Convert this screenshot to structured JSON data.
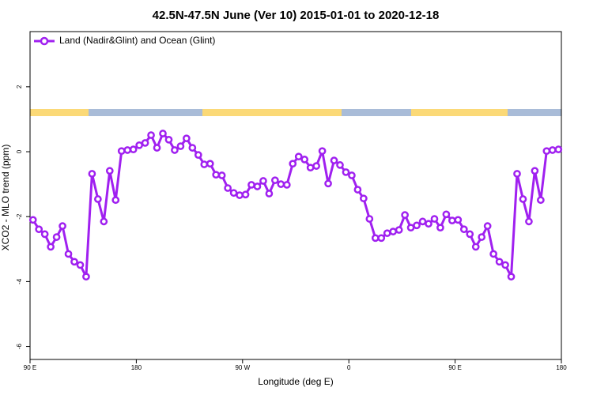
{
  "chart_data": {
    "type": "line",
    "title": "42.5N-47.5N June (Ver 10)   2015-01-01 to 2020-12-18",
    "x_label": "Longitude (deg E)",
    "y_label": "XCO2 - MLO trend (ppm)",
    "legend": "top-left",
    "x": [
      92.5,
      97.5,
      102.5,
      107.5,
      112.5,
      117.5,
      122.5,
      127.5,
      132.5,
      137.5,
      142.5,
      147.5,
      152.5,
      157.5,
      162.5,
      167.5,
      172.5,
      177.5,
      182.5,
      187.5,
      192.5,
      197.5,
      202.5,
      207.5,
      212.5,
      217.5,
      222.5,
      227.5,
      232.5,
      237.5,
      242.5,
      247.5,
      252.5,
      257.5,
      262.5,
      267.5,
      272.5,
      277.5,
      282.5,
      287.5,
      292.5,
      297.5,
      302.5,
      307.5,
      312.5,
      317.5,
      322.5,
      327.5,
      332.5,
      337.5,
      342.5,
      347.5,
      352.5,
      357.5,
      362.5,
      367.5,
      372.5,
      377.5,
      382.5,
      387.5,
      392.5,
      397.5,
      402.5,
      407.5,
      412.5,
      417.5,
      422.5,
      427.5,
      432.5,
      437.5,
      442.5,
      447.5,
      452.5,
      457.5,
      462.5,
      467.5,
      472.5,
      477.5,
      482.5,
      487.5,
      492.5,
      497.5,
      502.5,
      507.5,
      512.5,
      517.5,
      522.5,
      527.5,
      532.5,
      537.5
    ],
    "series": [
      {
        "name": "Land (Nadir&Glint) and Ocean (Glint)",
        "color": "#a020f0",
        "values": [
          -2.1,
          -2.39,
          -2.54,
          -2.93,
          -2.63,
          -2.29,
          -3.15,
          -3.39,
          -3.49,
          -3.85,
          -0.68,
          -1.46,
          -2.15,
          -0.59,
          -1.49,
          0.02,
          0.05,
          0.07,
          0.2,
          0.27,
          0.51,
          0.12,
          0.56,
          0.37,
          0.05,
          0.17,
          0.41,
          0.12,
          -0.1,
          -0.39,
          -0.37,
          -0.71,
          -0.73,
          -1.12,
          -1.27,
          -1.34,
          -1.32,
          -1.02,
          -1.07,
          -0.9,
          -1.29,
          -0.88,
          -1.0,
          -1.02,
          -0.37,
          -0.15,
          -0.24,
          -0.49,
          -0.44,
          0.02,
          -0.98,
          -0.27,
          -0.41,
          -0.63,
          -0.73,
          -1.17,
          -1.44,
          -2.07,
          -2.66,
          -2.66,
          -2.51,
          -2.46,
          -2.41,
          -1.95,
          -2.34,
          -2.27,
          -2.15,
          -2.22,
          -2.07,
          -2.34,
          -1.93,
          -2.12,
          -2.1,
          -2.39,
          -2.54,
          -2.93,
          -2.63,
          -2.29,
          -3.15,
          -3.39,
          -3.49,
          -3.85,
          -0.68,
          -1.46,
          -2.15,
          -0.59,
          -1.49,
          0.02,
          0.05,
          0.07
        ]
      }
    ],
    "xlim": [
      90,
      540
    ],
    "xticks": [
      {
        "value": 90,
        "label": "90 E"
      },
      180,
      {
        "value": 270,
        "label": "90 W"
      },
      {
        "value": 360,
        "label": "0"
      },
      {
        "value": 450,
        "label": "90 E"
      },
      {
        "value": 540,
        "label": "180"
      }
    ],
    "ylim": [
      -6.4,
      3.7
    ],
    "yticks": [
      -6,
      -4,
      -2,
      0,
      2
    ]
  }
}
